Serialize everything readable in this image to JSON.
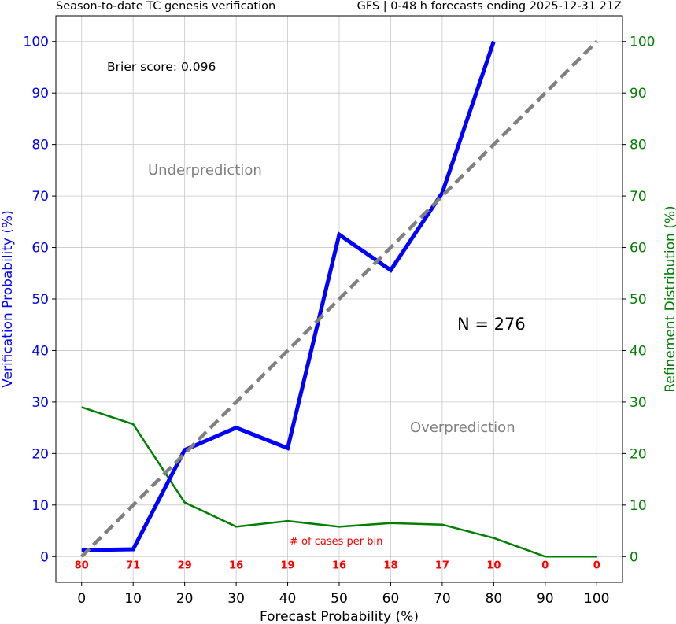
{
  "chart_data": {
    "type": "line",
    "title_left": "Season-to-date TC genesis verification",
    "title_right": "GFS | 0-48 h forecasts ending 2025-12-31 21Z",
    "xlabel": "Forecast Probability (%)",
    "ylabel_left": "Verification Probability (%)",
    "ylabel_right": "Refinement Distribution (%)",
    "xlim": [
      -5,
      105
    ],
    "ylim": [
      -5,
      105
    ],
    "x_ticks": [
      "0",
      "10",
      "20",
      "30",
      "40",
      "50",
      "60",
      "70",
      "80",
      "90",
      "100"
    ],
    "y_ticks": [
      "0",
      "10",
      "20",
      "30",
      "40",
      "50",
      "60",
      "70",
      "80",
      "90",
      "100"
    ],
    "grid": true,
    "annotations": {
      "brier": "Brier score: 0.096",
      "underprediction": "Underprediction",
      "overprediction": "Overprediction",
      "n_total": "N = 276",
      "cases_label": "# of cases per bin"
    },
    "colors": {
      "verification": "#0000ff",
      "refinement": "#008000",
      "perfect": "#808080",
      "counts": "#ff0000"
    },
    "series": [
      {
        "axis": "left",
        "x": [
          0,
          10,
          20,
          30,
          40,
          50,
          60,
          70,
          80
        ],
        "y": [
          1.25,
          1.41,
          20.7,
          25.0,
          21.05,
          62.5,
          55.6,
          70.6,
          100.0
        ]
      },
      {
        "axis": "right",
        "x": [
          0,
          10,
          20,
          30,
          40,
          50,
          60,
          70,
          80,
          90,
          100
        ],
        "y": [
          29.0,
          25.7,
          10.5,
          5.8,
          6.9,
          5.8,
          6.5,
          6.2,
          3.6,
          0.0,
          0.0
        ]
      },
      {
        "axis": "left",
        "x": [
          0,
          100
        ],
        "y": [
          0,
          100
        ]
      }
    ],
    "counts": {
      "x": [
        0,
        10,
        20,
        30,
        40,
        50,
        60,
        70,
        80,
        90,
        100
      ],
      "labels": [
        "80",
        "71",
        "29",
        "16",
        "19",
        "16",
        "18",
        "17",
        "10",
        "0",
        "0"
      ]
    }
  }
}
